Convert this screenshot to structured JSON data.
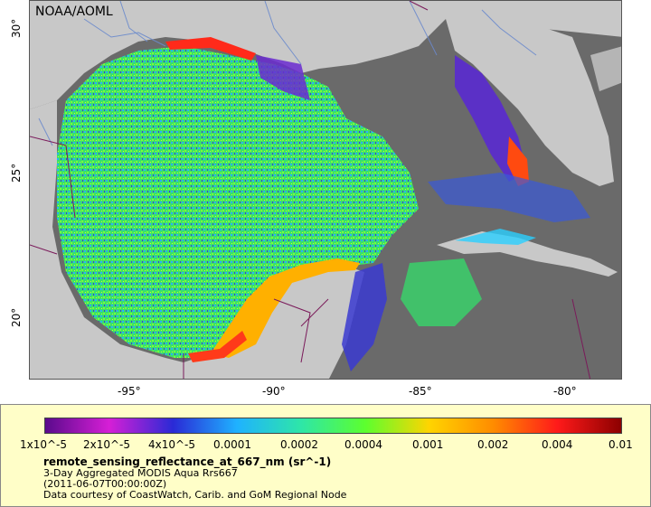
{
  "credit_label": "NOAA/AOML",
  "axes": {
    "y_ticks": [
      "30°",
      "25°",
      "20°"
    ],
    "x_ticks": [
      "-95°",
      "-90°",
      "-85°",
      "-80°"
    ]
  },
  "colorbar": {
    "labels": [
      "1x10^-5",
      "2x10^-5",
      "4x10^-5",
      "0.0001",
      "0.0002",
      "0.0004",
      "0.001",
      "0.002",
      "0.004",
      "0.01"
    ],
    "colors": [
      "#5a0a8c",
      "#d61fd6",
      "#2a2ad6",
      "#1fb2ff",
      "#2ee6a8",
      "#5cff2e",
      "#ffd400",
      "#ff8c00",
      "#ff1a1a",
      "#8c0000"
    ]
  },
  "legend": {
    "variable": "remote_sensing_reflectance_at_667_nm (sr^-1)",
    "product": "3-Day Aggregated MODIS Aqua Rrs667",
    "date": "(2011-06-07T00:00:00Z)",
    "credit": "Data courtesy of CoastWatch, Carib. and GoM Regional Node"
  },
  "colors": {
    "land": "#c8c8c8",
    "no_data": "#6a6a6a",
    "legend_background": "#fffec8",
    "border_lines": "#7a1a5a",
    "rivers": "#6a8acc"
  }
}
